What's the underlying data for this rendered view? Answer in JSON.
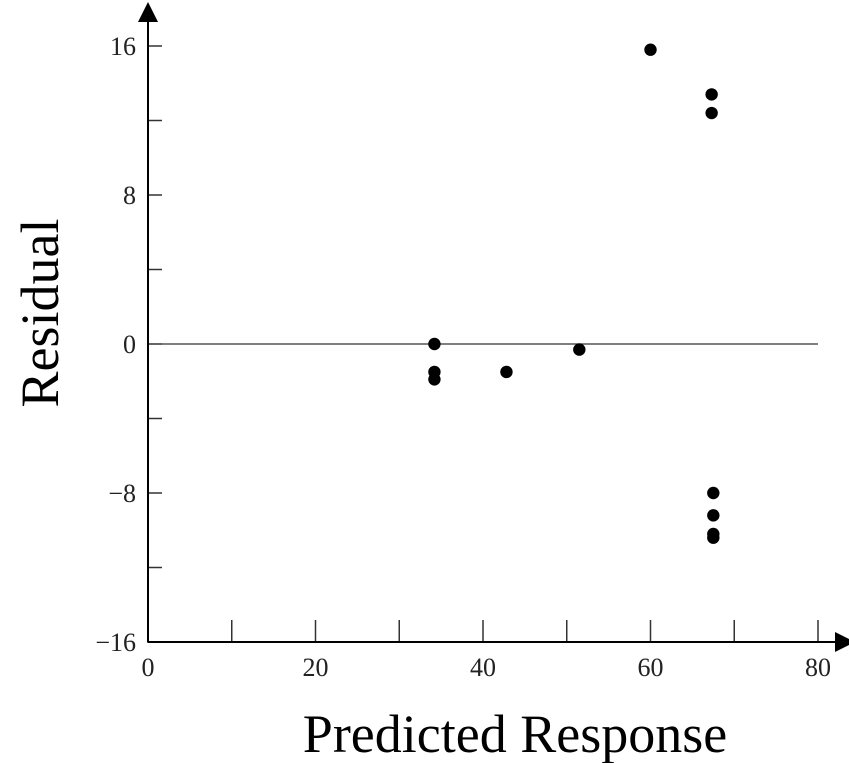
{
  "chart_data": {
    "type": "scatter",
    "xlabel": "Predicted Response",
    "ylabel": "Residual",
    "xlim": [
      0,
      80
    ],
    "ylim": [
      -16,
      16
    ],
    "x_ticks": [
      0,
      20,
      40,
      60,
      80
    ],
    "x_tick_labels": [
      "0",
      "20",
      "40",
      "60",
      "80"
    ],
    "x_minor_ticks": [
      10,
      30,
      50,
      70
    ],
    "y_ticks": [
      -16,
      -8,
      0,
      8,
      16
    ],
    "y_tick_labels": [
      "−16",
      "−8",
      "0",
      "8",
      "16"
    ],
    "y_minor_ticks": [
      -12,
      -4,
      4,
      12
    ],
    "reference_line_y": 0,
    "grid": false,
    "points": [
      {
        "x": 34.2,
        "y": 0.0
      },
      {
        "x": 34.2,
        "y": -1.5
      },
      {
        "x": 34.2,
        "y": -1.9
      },
      {
        "x": 42.8,
        "y": -1.5
      },
      {
        "x": 51.5,
        "y": -0.3
      },
      {
        "x": 60.0,
        "y": 15.8
      },
      {
        "x": 67.3,
        "y": 13.4
      },
      {
        "x": 67.3,
        "y": 12.4
      },
      {
        "x": 67.5,
        "y": -8.0
      },
      {
        "x": 67.5,
        "y": -9.2
      },
      {
        "x": 67.5,
        "y": -10.2
      },
      {
        "x": 67.5,
        "y": -10.4
      }
    ]
  }
}
